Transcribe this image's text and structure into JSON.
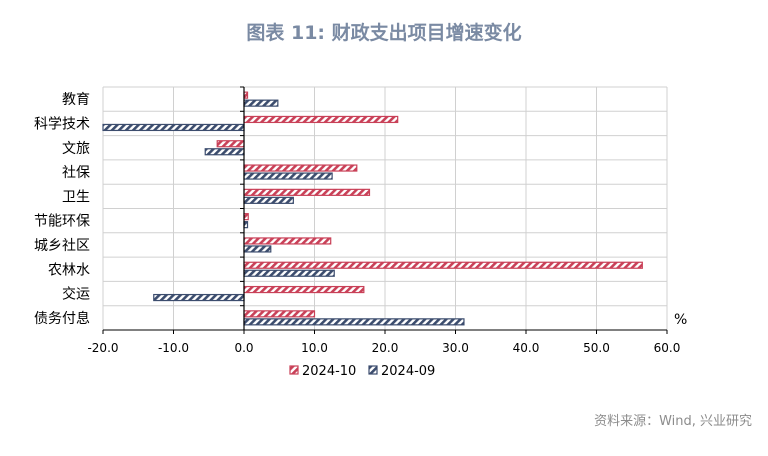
{
  "title": "图表 11: 财政支出项目增速变化",
  "source": "资料来源：Wind, 兴业研究",
  "colors": {
    "2024-10": "#c94158",
    "2024-09": "#3c4d6e",
    "grid": "#d0d0d0",
    "axis": "#000000"
  },
  "chart_data": {
    "type": "bar",
    "orientation": "horizontal",
    "categories": [
      "教育",
      "科学技术",
      "文旅",
      "社保",
      "卫生",
      "节能环保",
      "城乡社区",
      "农林水",
      "交运",
      "债务付息"
    ],
    "series": [
      {
        "name": "2024-10",
        "values": [
          0.5,
          21.8,
          -3.8,
          16.0,
          17.8,
          0.6,
          12.3,
          56.5,
          17.0,
          10.0
        ]
      },
      {
        "name": "2024-09",
        "values": [
          4.8,
          -20.0,
          -5.5,
          12.5,
          7.0,
          0.5,
          3.8,
          12.8,
          -12.8,
          31.2
        ]
      }
    ],
    "xlim": [
      -20,
      60
    ],
    "xticks": [
      "-20.0",
      "-10.0",
      "0.0",
      "10.0",
      "20.0",
      "30.0",
      "40.0",
      "50.0",
      "60.0"
    ],
    "xticks_values": [
      -20,
      -10,
      0,
      10,
      20,
      30,
      40,
      50,
      60
    ],
    "unit_label": "%",
    "grid": true,
    "legend": "bottom"
  }
}
